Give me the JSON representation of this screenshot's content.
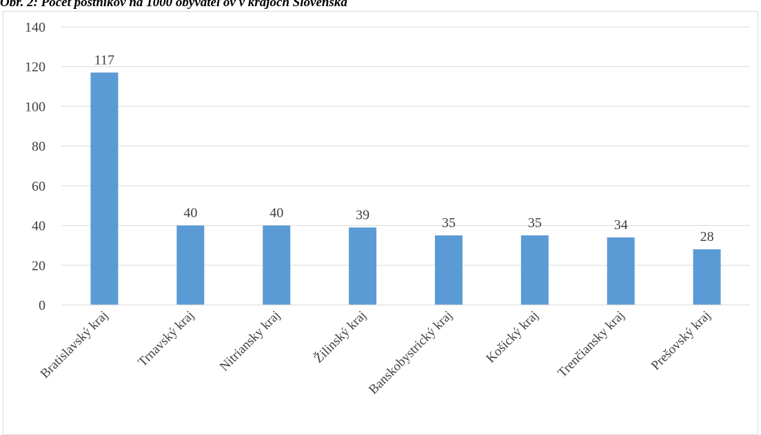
{
  "chart_data": {
    "type": "bar",
    "title": "Obr. 2: Počet poštníkov na 1000 obyvateľov v krajoch Slovenska",
    "xlabel": "",
    "ylabel": "",
    "categories": [
      "Bratislavský kraj",
      "Trnavský kraj",
      "Nitriansky kraj",
      "Žilinský kraj",
      "Banskobystrický kraj",
      "Košický kraj",
      "Trenčiansky kraj",
      "Prešovský kraj"
    ],
    "values": [
      117,
      40,
      40,
      39,
      35,
      35,
      34,
      28
    ],
    "data_labels": [
      "117",
      "40",
      "40",
      "39",
      "35",
      "35",
      "34",
      "28"
    ],
    "y_ticks": [
      "0",
      "20",
      "40",
      "60",
      "80",
      "100",
      "120",
      "140"
    ],
    "ylim": [
      0,
      140
    ],
    "grid": true,
    "legend": "none",
    "bar_color": "#5b9bd5",
    "grid_color": "#d9d9d9"
  }
}
